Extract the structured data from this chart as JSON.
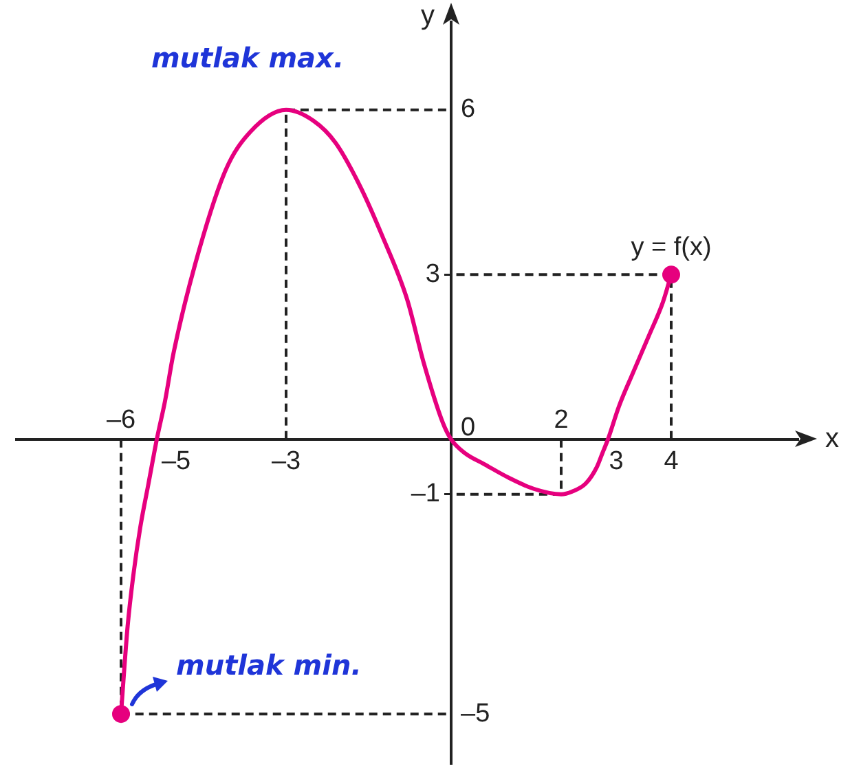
{
  "chart_data": {
    "type": "line",
    "xlabel": "x",
    "ylabel": "y",
    "xlim": [
      -7.9,
      6.3
    ],
    "ylim": [
      -5.9,
      7.6
    ],
    "xticks": [
      {
        "value": -5,
        "label": "–5"
      },
      {
        "value": -3,
        "label": "–3"
      },
      3,
      4
    ],
    "x2lim": [
      -7.9,
      6.3
    ],
    "x2ticks": [
      {
        "value": -6,
        "label": "–6"
      },
      2
    ],
    "yticks": [
      {
        "value": -1,
        "label": "–1"
      },
      3
    ],
    "y2lim": [
      -5.9,
      7.6
    ],
    "y2ticks": [
      {
        "value": -5,
        "label": "–5"
      },
      0,
      6
    ],
    "series": [
      {
        "name": "y = f(x)",
        "type": "line",
        "color": "#e6007e",
        "x": [
          -6,
          -5.95,
          -5.88,
          -5.78,
          -5.65,
          -5.5,
          -5.35,
          -5.2,
          -5.05,
          -4.65,
          -4.1,
          -3.65,
          -3,
          -2.5,
          -2.1,
          -1.65,
          -1.25,
          -0.8,
          -0.5,
          -0.15,
          0,
          0.25,
          0.6,
          1.05,
          1.5,
          2,
          2.2,
          2.45,
          2.65,
          2.75,
          2.85,
          3.05,
          3.3,
          3.6,
          3.85,
          4
        ],
        "values": [
          -5,
          -4.3,
          -3.4,
          -2.5,
          -1.6,
          -0.8,
          0,
          0.7,
          1.55,
          3.2,
          4.9,
          5.6,
          6,
          5.8,
          5.4,
          4.6,
          3.7,
          2.55,
          1.4,
          0.3,
          0,
          -0.25,
          -0.45,
          -0.7,
          -0.9,
          -1,
          -0.95,
          -0.8,
          -0.5,
          -0.25,
          0,
          0.6,
          1.2,
          1.9,
          2.5,
          3
        ]
      },
      {
        "type": "scatter",
        "color": "#e6007e",
        "x": [
          -6,
          4
        ],
        "values": [
          -5,
          3
        ],
        "marker": "circle"
      },
      {
        "type": "line",
        "color": "#222222",
        "x": [
          -6,
          -6,
          0
        ],
        "values": [
          0,
          -5,
          -5
        ],
        "line_style": "dashed"
      },
      {
        "type": "line",
        "color": "#222222",
        "x": [
          -3,
          -3,
          0
        ],
        "values": [
          0,
          6,
          6
        ],
        "line_style": "dashed"
      },
      {
        "type": "line",
        "color": "#222222",
        "x": [
          2,
          2,
          0
        ],
        "values": [
          0,
          -1,
          -1
        ],
        "line_style": "dashed"
      },
      {
        "type": "line",
        "color": "#222222",
        "x": [
          4,
          4,
          0
        ],
        "values": [
          0,
          3,
          3
        ],
        "line_style": "dashed"
      }
    ],
    "annotations": [
      {
        "text": "mutlak max.",
        "x": -3,
        "y": 6
      },
      {
        "text": "mutlak min.",
        "x": -6,
        "y": -5
      }
    ]
  }
}
